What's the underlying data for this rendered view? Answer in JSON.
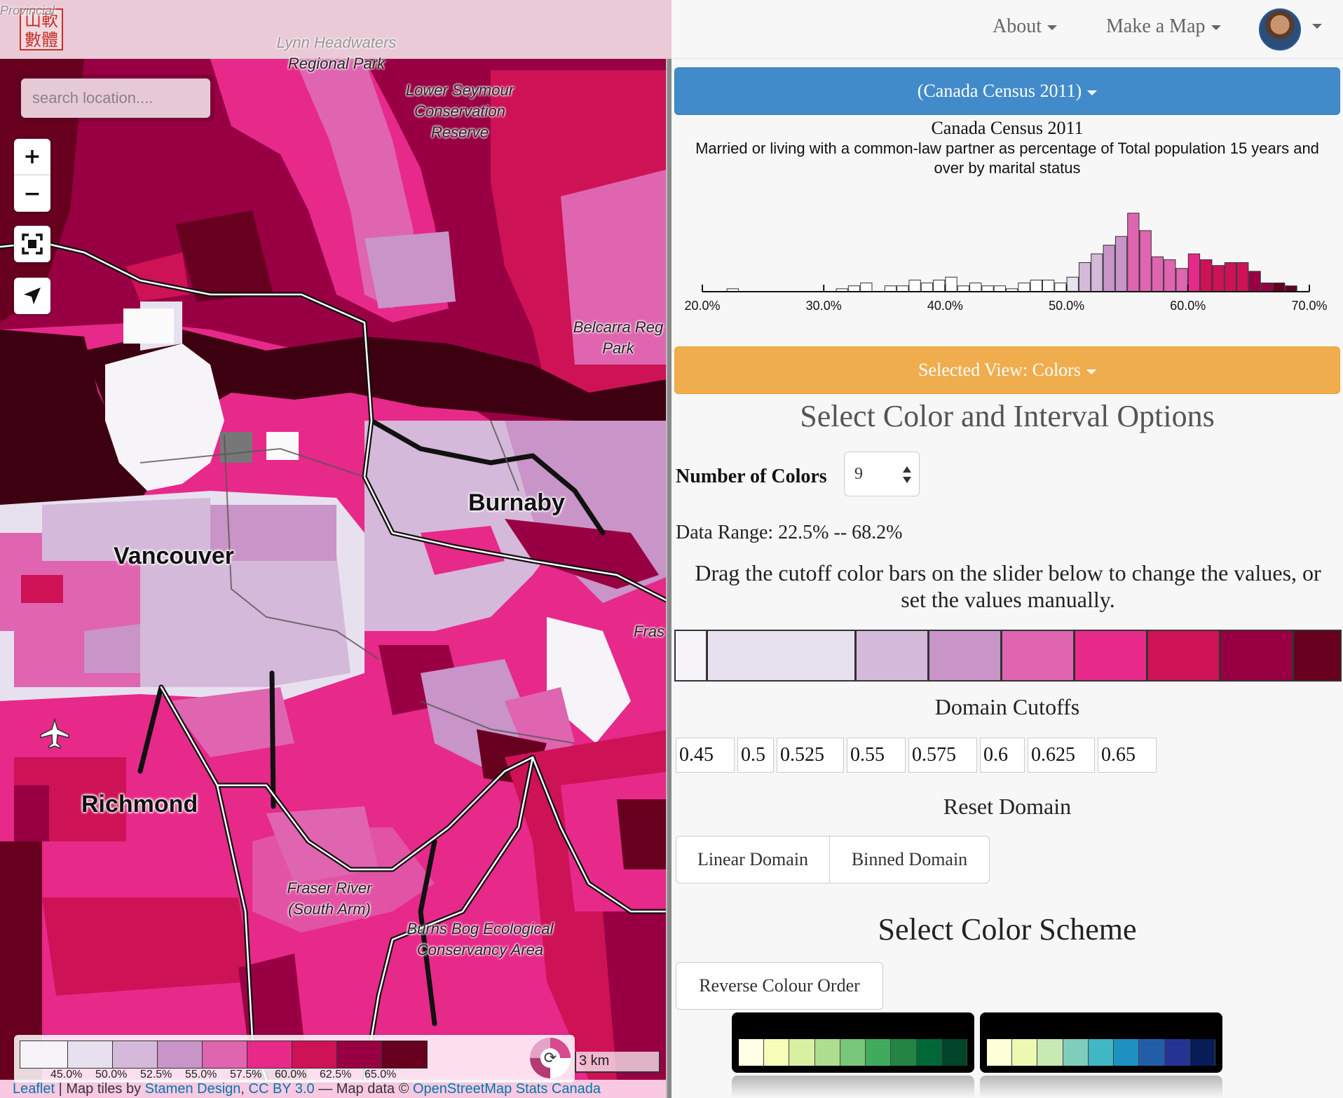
{
  "map": {
    "search_placeholder": "search location....",
    "zoom_in": "+",
    "zoom_out": "−",
    "logo_text": "山軟數體",
    "labels": {
      "vancouver": "Vancouver",
      "burnaby": "Burnaby",
      "richmond": "Richmond",
      "lynn": "Lynn Headwaters",
      "regional_park": "Regional Park",
      "lower_seymour": "Lower Seymour Conservation Reserve",
      "belcarra": "Belcarra Reg Park",
      "fraser_north": "Fras",
      "fraser_south": "Fraser River (South Arm)",
      "burns_bog": "Burns Bog Ecological Conservancy Area",
      "provincial": "Provincial"
    },
    "legend": {
      "labels": [
        "45.0%",
        "50.0%",
        "52.5%",
        "55.0%",
        "57.5%",
        "60.0%",
        "62.5%",
        "65.0%"
      ],
      "colors": [
        "#f7f4f9",
        "#e7e1ef",
        "#d4b9da",
        "#c994c7",
        "#df65b0",
        "#e7298a",
        "#ce1256",
        "#980043",
        "#67001f"
      ]
    },
    "scale_label": "3 km",
    "attribution": {
      "leaflet": "Leaflet",
      "sep1": " | Map tiles by ",
      "stamen": "Stamen Design",
      "sep2": ", ",
      "ccby": "CC BY 3.0",
      "sep3": " — Map data © ",
      "osm": "OpenStreetMap",
      "sep4": " ",
      "statscan": "Stats Canada"
    }
  },
  "nav": {
    "about": "About",
    "make_map": "Make a Map"
  },
  "dataset": {
    "button_label": "(Canada Census 2011)",
    "title": "Canada Census 2011",
    "subtitle": "Married or living with a common-law partner as percentage of Total population 15 years and over by marital status"
  },
  "chart_data": {
    "type": "bar",
    "title": "",
    "xlabel": "",
    "ylabel": "",
    "x_tick_labels": [
      "20.0%",
      "30.0%",
      "40.0%",
      "50.0%",
      "60.0%",
      "70.0%"
    ],
    "x_ticks": [
      20,
      30,
      40,
      50,
      60,
      70
    ],
    "xlim": [
      20,
      70
    ],
    "bin_width": 1,
    "bin_starts": [
      22,
      31,
      32,
      33,
      35,
      36,
      37,
      38,
      39,
      40,
      41,
      42,
      43,
      44,
      45,
      46,
      47,
      48,
      49,
      50,
      51,
      52,
      53,
      54,
      55,
      56,
      57,
      58,
      59,
      60,
      61,
      62,
      63,
      64,
      65,
      66,
      67,
      68
    ],
    "values": [
      1,
      1,
      2,
      3,
      2,
      2,
      4,
      3,
      4,
      5,
      2,
      3,
      2,
      2,
      1,
      3,
      4,
      4,
      3,
      5,
      10,
      13,
      16,
      19,
      27,
      21,
      12,
      11,
      8,
      13,
      11,
      9,
      10,
      10,
      7,
      3,
      3,
      2
    ],
    "bin_colors": [
      "#ffffff",
      "#ffffff",
      "#ffffff",
      "#ffffff",
      "#ffffff",
      "#ffffff",
      "#ffffff",
      "#ffffff",
      "#ffffff",
      "#ffffff",
      "#ffffff",
      "#ffffff",
      "#ffffff",
      "#ffffff",
      "#ffffff",
      "#ffffff",
      "#ffffff",
      "#ffffff",
      "#ffffff",
      "#e7e1ef",
      "#d4b9da",
      "#d4b9da",
      "#c994c7",
      "#c994c7",
      "#df65b0",
      "#df65b0",
      "#df65b0",
      "#df65b0",
      "#df65b0",
      "#e7298a",
      "#ce1256",
      "#ce1256",
      "#ce1256",
      "#ce1256",
      "#980043",
      "#980043",
      "#67001f",
      "#67001f"
    ]
  },
  "view": {
    "button_label": "Selected View: Colors",
    "heading": "Select Color and Interval Options",
    "num_colors_label": "Number of Colors",
    "num_colors_value": "9",
    "data_range": "Data Range: 22.5% -- 68.2%",
    "instructions": "Drag the cutoff color bars on the slider below to change the values, or set the values manually.",
    "slider": {
      "domain": [
        0.225,
        0.682
      ],
      "cutoffs": [
        0.45,
        0.5,
        0.525,
        0.55,
        0.575,
        0.6,
        0.625,
        0.65
      ],
      "colors": [
        "#f7f4f9",
        "#e7e1ef",
        "#d4b9da",
        "#c994c7",
        "#df65b0",
        "#e7298a",
        "#ce1256",
        "#980043",
        "#67001f"
      ]
    },
    "domain_cutoffs_heading": "Domain Cutoffs",
    "cutoff_values": [
      "0.45",
      "0.5",
      "0.525",
      "0.55",
      "0.575",
      "0.6",
      "0.625",
      "0.65"
    ],
    "reset_heading": "Reset Domain",
    "linear_domain": "Linear Domain",
    "binned_domain": "Binned Domain",
    "scheme_heading": "Select Color Scheme",
    "reverse_label": "Reverse Colour Order",
    "schemes": [
      [
        "#ffffe5",
        "#f7fcb9",
        "#d9f0a3",
        "#addd8e",
        "#78c679",
        "#41ab5d",
        "#238443",
        "#006837",
        "#004529"
      ],
      [
        "#ffffd9",
        "#edf8b1",
        "#c7e9b4",
        "#7fcdbb",
        "#41b6c4",
        "#1d91c0",
        "#225ea8",
        "#253494",
        "#081d58"
      ]
    ]
  }
}
